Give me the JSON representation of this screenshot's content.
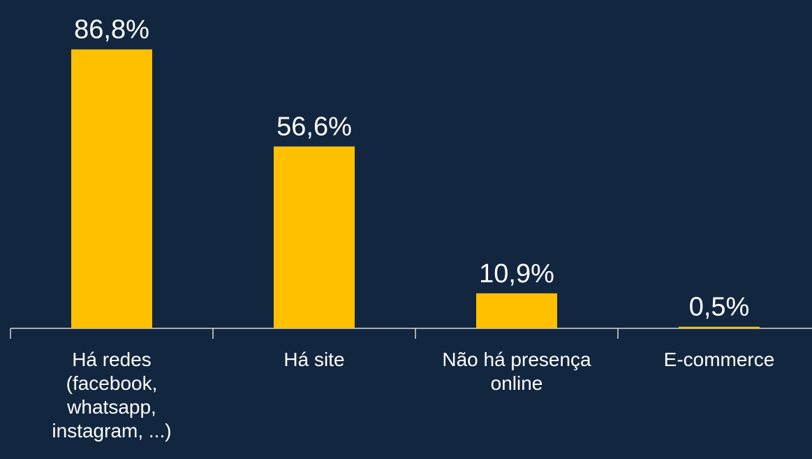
{
  "chart_data": {
    "type": "bar",
    "categories": [
      "Há redes (facebook, whatsapp, instagram, ...)",
      "Há site",
      "Não há presença online",
      "E-commerce"
    ],
    "values": [
      86.8,
      56.6,
      10.9,
      0.5
    ],
    "value_labels": [
      "86,8%",
      "56,6%",
      "10,9%",
      "0,5%"
    ],
    "color": "#ffc000",
    "ylim": [
      0,
      100
    ]
  }
}
